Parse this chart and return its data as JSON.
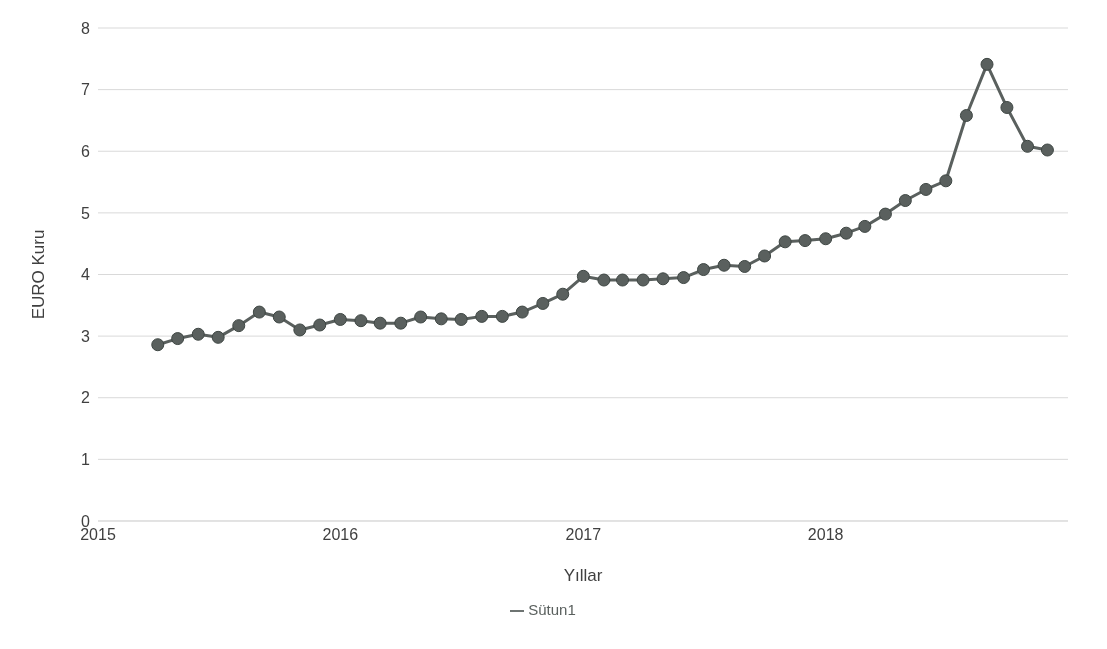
{
  "chart_data": {
    "type": "line",
    "xlabel": "Yıllar",
    "ylabel": "EURO Kuru",
    "x": [
      "2015-04",
      "2015-05",
      "2015-06",
      "2015-07",
      "2015-08",
      "2015-09",
      "2015-10",
      "2015-11",
      "2015-12",
      "2016-01",
      "2016-02",
      "2016-03",
      "2016-04",
      "2016-05",
      "2016-06",
      "2016-07",
      "2016-08",
      "2016-09",
      "2016-10",
      "2016-11",
      "2016-12",
      "2017-01",
      "2017-02",
      "2017-03",
      "2017-04",
      "2017-05",
      "2017-06",
      "2017-07",
      "2017-08",
      "2017-09",
      "2017-10",
      "2017-11",
      "2017-12",
      "2018-01",
      "2018-02",
      "2018-03",
      "2018-04",
      "2018-05",
      "2018-06",
      "2018-07",
      "2018-08",
      "2018-09",
      "2018-10",
      "2018-11",
      "2018-12"
    ],
    "series": [
      {
        "name": "Sütun1",
        "color": "#5a605e",
        "values": [
          2.86,
          2.96,
          3.03,
          2.98,
          3.17,
          3.39,
          3.31,
          3.1,
          3.18,
          3.27,
          3.25,
          3.21,
          3.21,
          3.31,
          3.28,
          3.27,
          3.32,
          3.32,
          3.39,
          3.53,
          3.68,
          3.97,
          3.91,
          3.91,
          3.91,
          3.93,
          3.95,
          4.08,
          4.15,
          4.13,
          4.3,
          4.53,
          4.55,
          4.58,
          4.67,
          4.78,
          4.98,
          5.2,
          5.38,
          5.52,
          6.58,
          7.41,
          6.71,
          6.08,
          6.02
        ]
      }
    ],
    "xlim": [
      "2015",
      "2019"
    ],
    "xticks": [
      "2015",
      "2016",
      "2017",
      "2018"
    ],
    "ylim": [
      0,
      8
    ],
    "yticks": [
      0,
      1,
      2,
      3,
      4,
      5,
      6,
      7,
      8
    ],
    "grid": "y",
    "legend": "bottom",
    "marker": "circle",
    "line_style": "solid"
  }
}
